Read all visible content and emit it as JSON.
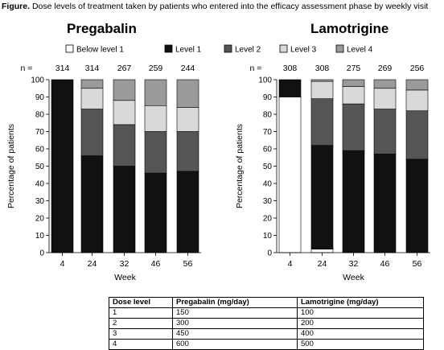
{
  "figure_label": "Figure.",
  "figure_caption": "Dose levels of treatment taken by patients who entered into the efficacy assessment phase by weekly visit",
  "colors": {
    "below_level_1": "#ffffff",
    "level_1": "#111111",
    "level_2": "#555555",
    "level_3": "#d9d9d9",
    "level_4": "#9a9a9a"
  },
  "legend": {
    "entries": [
      "Below level 1",
      "Level 1",
      "Level 2",
      "Level 3",
      "Level 4"
    ],
    "placement": "top"
  },
  "n_label": "n =",
  "chart_data": [
    {
      "type": "bar",
      "stacked": true,
      "title": "Pregabalin",
      "xlabel": "Week",
      "ylabel": "Percentage of patients",
      "ylim": [
        0,
        100
      ],
      "yticks": [
        0,
        10,
        20,
        30,
        40,
        50,
        60,
        70,
        80,
        90,
        100
      ],
      "categories": [
        "4",
        "24",
        "32",
        "46",
        "56"
      ],
      "n": [
        "314",
        "314",
        "267",
        "259",
        "244"
      ],
      "series": [
        {
          "name": "Below level 1",
          "values": [
            0,
            0,
            0,
            0,
            0
          ]
        },
        {
          "name": "Level 1",
          "values": [
            100,
            56,
            50,
            46,
            47
          ]
        },
        {
          "name": "Level 2",
          "values": [
            0,
            27,
            24,
            24,
            23
          ]
        },
        {
          "name": "Level 3",
          "values": [
            0,
            12,
            14,
            15,
            14
          ]
        },
        {
          "name": "Level 4",
          "values": [
            0,
            5,
            12,
            15,
            16
          ]
        }
      ]
    },
    {
      "type": "bar",
      "stacked": true,
      "title": "Lamotrigine",
      "xlabel": "Week",
      "ylabel": "Percentage of patients",
      "ylim": [
        0,
        100
      ],
      "yticks": [
        0,
        10,
        20,
        30,
        40,
        50,
        60,
        70,
        80,
        90,
        100
      ],
      "categories": [
        "4",
        "24",
        "32",
        "46",
        "56"
      ],
      "n": [
        "308",
        "308",
        "275",
        "269",
        "256"
      ],
      "series": [
        {
          "name": "Below level 1",
          "values": [
            90,
            2,
            0,
            0,
            0
          ]
        },
        {
          "name": "Level 1",
          "values": [
            10,
            60,
            59,
            57,
            54
          ]
        },
        {
          "name": "Level 2",
          "values": [
            0,
            27,
            27,
            26,
            28
          ]
        },
        {
          "name": "Level 3",
          "values": [
            0,
            10,
            10,
            12,
            12
          ]
        },
        {
          "name": "Level 4",
          "values": [
            0,
            1,
            4,
            5,
            6
          ]
        }
      ]
    }
  ],
  "dose_table": {
    "headers": [
      "Dose level",
      "Pregabalin (mg/day)",
      "Lamotrigine (mg/day)"
    ],
    "rows": [
      [
        "1",
        "150",
        "100"
      ],
      [
        "2",
        "300",
        "200"
      ],
      [
        "3",
        "450",
        "400"
      ],
      [
        "4",
        "600",
        "500"
      ]
    ]
  }
}
